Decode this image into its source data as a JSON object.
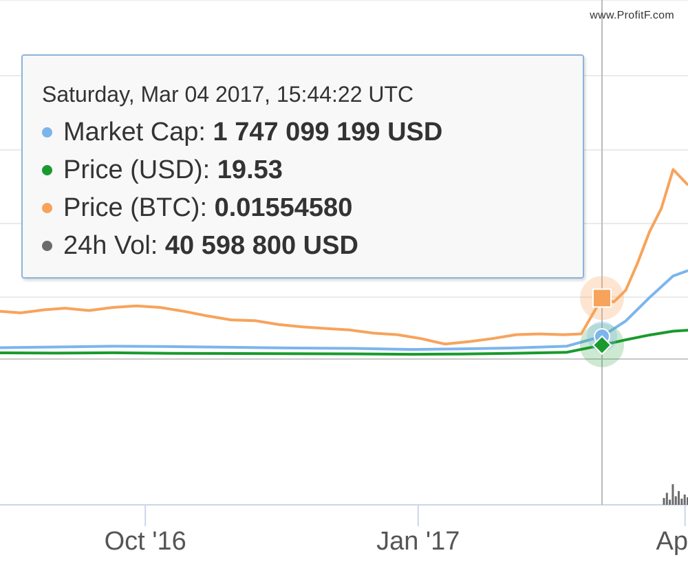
{
  "watermark": "www.ProfitF.com",
  "tooltip": {
    "date": "Saturday, Mar 04 2017, 15:44:22 UTC",
    "rows": [
      {
        "label": "Market Cap:",
        "value": "1 747 099 199 USD",
        "color": "#7cb5ec"
      },
      {
        "label": "Price (USD):",
        "value": "19.53",
        "color": "#1a9a2e"
      },
      {
        "label": "Price (BTC):",
        "value": "0.01554580",
        "color": "#f7a35c"
      },
      {
        "label": "24h Vol:",
        "value": "40 598 800 USD",
        "color": "#6b6b6b"
      }
    ]
  },
  "chart_data": {
    "type": "line",
    "x_tick_labels": [
      "Oct '16",
      "Jan '17",
      "Ap"
    ],
    "x_range": [
      "2016-08-13",
      "2017-04-02"
    ],
    "crosshair_date": "2017-03-04",
    "grid": true,
    "series": [
      {
        "name": "Price (BTC)",
        "color": "#f7a35c",
        "x": [
          "2016-08-13",
          "2016-08-20",
          "2016-08-28",
          "2016-09-04",
          "2016-09-12",
          "2016-09-20",
          "2016-09-28",
          "2016-10-06",
          "2016-10-14",
          "2016-10-22",
          "2016-10-30",
          "2016-11-07",
          "2016-11-15",
          "2016-11-23",
          "2016-12-01",
          "2016-12-09",
          "2016-12-17",
          "2016-12-25",
          "2017-01-02",
          "2017-01-10",
          "2017-01-18",
          "2017-01-26",
          "2017-02-03",
          "2017-02-11",
          "2017-02-19",
          "2017-02-25",
          "2017-03-04",
          "2017-03-08",
          "2017-03-12",
          "2017-03-16",
          "2017-03-20",
          "2017-03-24",
          "2017-03-28",
          "2017-04-02"
        ],
        "values": [
          0.0138,
          0.0136,
          0.014,
          0.0142,
          0.0139,
          0.0143,
          0.0145,
          0.0143,
          0.0138,
          0.0132,
          0.0127,
          0.0126,
          0.0121,
          0.0118,
          0.0116,
          0.0114,
          0.011,
          0.0108,
          0.0103,
          0.0096,
          0.0099,
          0.0103,
          0.0108,
          0.0109,
          0.0108,
          0.0109,
          0.0155,
          0.015,
          0.0165,
          0.02,
          0.024,
          0.027,
          0.032,
          0.03
        ]
      },
      {
        "name": "Market Cap",
        "color": "#7cb5ec",
        "x": [
          "2016-08-13",
          "2016-09-01",
          "2016-09-20",
          "2016-10-10",
          "2016-11-01",
          "2016-11-20",
          "2016-12-10",
          "2016-12-30",
          "2017-01-15",
          "2017-02-01",
          "2017-02-20",
          "2017-03-04",
          "2017-03-12",
          "2017-03-20",
          "2017-03-28",
          "2017-04-02"
        ],
        "values": [
          1.12,
          1.16,
          1.2,
          1.18,
          1.14,
          1.1,
          1.08,
          1.02,
          1.05,
          1.1,
          1.2,
          1.747,
          2.6,
          3.9,
          5.1,
          5.4
        ]
      },
      {
        "name": "Price (USD)",
        "color": "#1a9a2e",
        "x": [
          "2016-08-13",
          "2016-09-01",
          "2016-09-20",
          "2016-10-10",
          "2016-11-01",
          "2016-11-20",
          "2016-12-10",
          "2016-12-30",
          "2017-01-15",
          "2017-02-01",
          "2017-02-20",
          "2017-03-04",
          "2017-03-12",
          "2017-03-20",
          "2017-03-28",
          "2017-04-02"
        ],
        "values": [
          11.5,
          11.2,
          11.6,
          11.0,
          10.8,
          10.6,
          10.4,
          10.0,
          10.3,
          11.0,
          12.0,
          19.53,
          25.0,
          30.0,
          34.0,
          35.0
        ]
      },
      {
        "name": "24h Vol",
        "color": "#6b6b6b",
        "x": [
          "2017-03-25",
          "2017-03-26",
          "2017-03-27",
          "2017-03-28",
          "2017-03-29",
          "2017-03-30",
          "2017-03-31",
          "2017-04-01",
          "2017-04-02"
        ],
        "values": [
          20,
          35,
          15,
          60,
          25,
          40,
          18,
          30,
          22
        ]
      }
    ]
  }
}
